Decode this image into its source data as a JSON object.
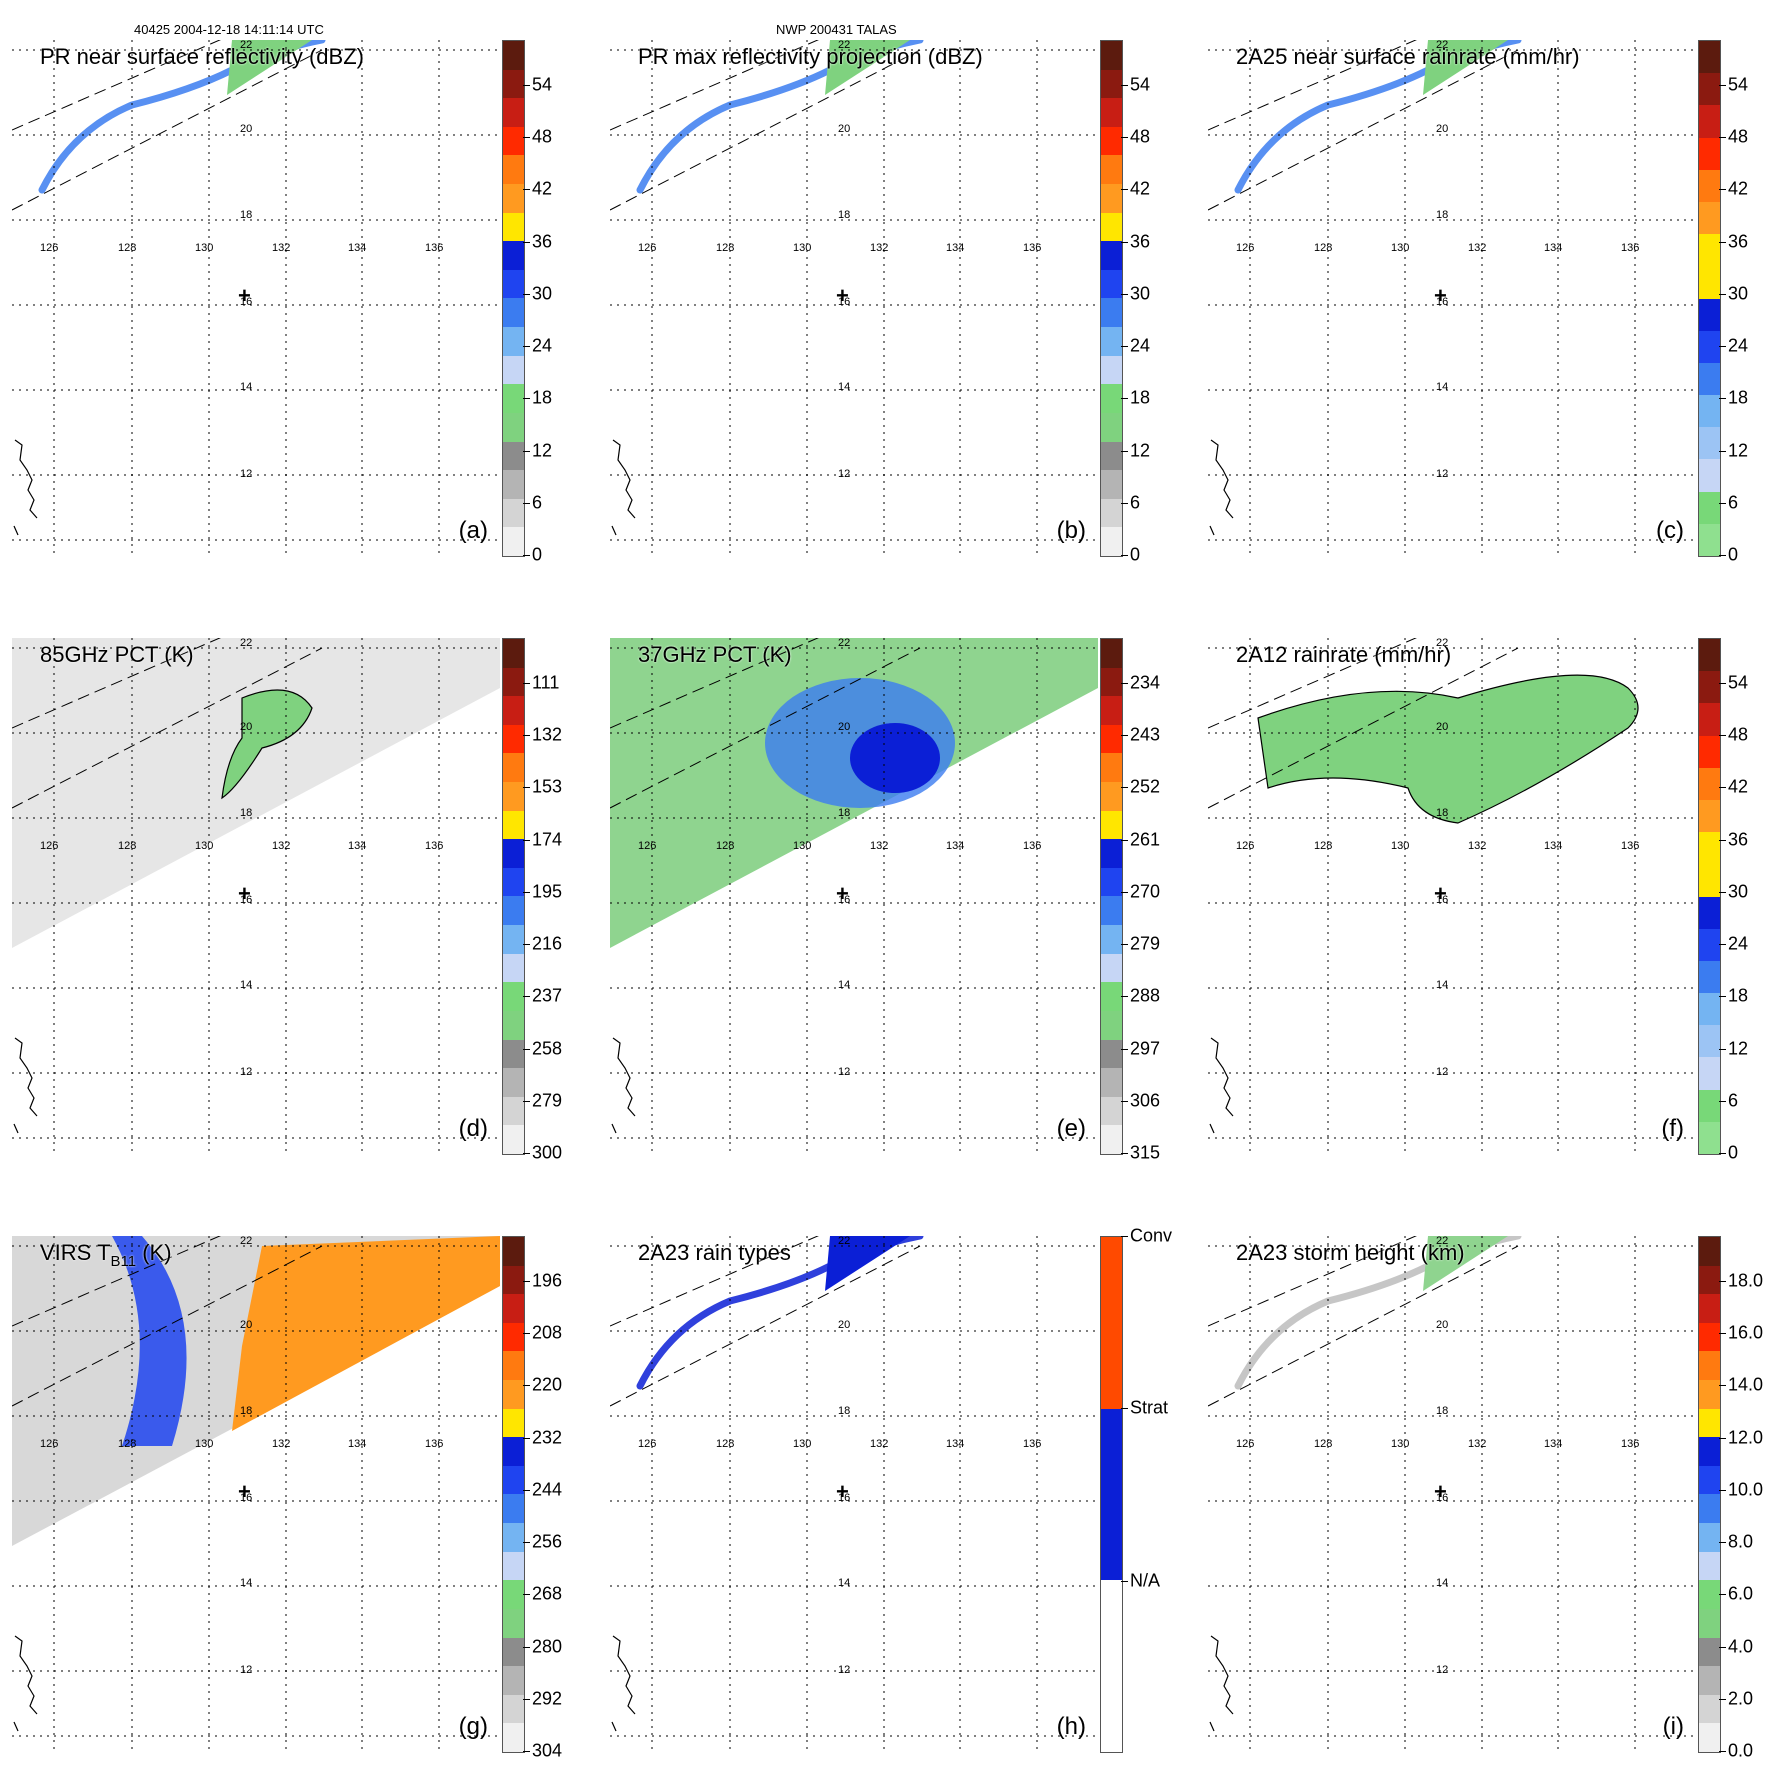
{
  "header": {
    "left": "40425 2004-12-18 14:11:14 UTC",
    "right": "NWP 200431 TALAS"
  },
  "longitudes": [
    "126",
    "128",
    "130",
    "132",
    "134",
    "136"
  ],
  "latitudes": [
    "22",
    "20",
    "18",
    "16",
    "14",
    "12"
  ],
  "center_marker": "+",
  "panels": [
    {
      "id": "a",
      "title": "PR near surface reflectivity (dBZ)",
      "label": "(a)",
      "ticks": [
        "54",
        "48",
        "42",
        "36",
        "30",
        "24",
        "18",
        "12",
        "6",
        "0"
      ],
      "colors": [
        "#5c1b0e",
        "#8b1a10",
        "#c81e14",
        "#ff2a00",
        "#ff7a10",
        "#ff9a20",
        "#ffe600",
        "#0b1fd6",
        "#1f44f0",
        "#3b7cf0",
        "#74b4f2",
        "#c6d6f5",
        "#78d878",
        "#7fd27f",
        "#8c8c8c",
        "#b4b4b4",
        "#d4d4d4",
        "#f0f0f0"
      ]
    },
    {
      "id": "b",
      "title": "PR max reflectivity projection (dBZ)",
      "label": "(b)",
      "ticks": [
        "54",
        "48",
        "42",
        "36",
        "30",
        "24",
        "18",
        "12",
        "6",
        "0"
      ],
      "colors": [
        "#5c1b0e",
        "#8b1a10",
        "#c81e14",
        "#ff2a00",
        "#ff7a10",
        "#ff9a20",
        "#ffe600",
        "#0b1fd6",
        "#1f44f0",
        "#3b7cf0",
        "#74b4f2",
        "#c6d6f5",
        "#78d878",
        "#7fd27f",
        "#8c8c8c",
        "#b4b4b4",
        "#d4d4d4",
        "#f0f0f0"
      ]
    },
    {
      "id": "c",
      "title": "2A25 near surface rainrate (mm/hr)",
      "label": "(c)",
      "ticks": [
        "54",
        "48",
        "42",
        "36",
        "30",
        "24",
        "18",
        "12",
        "6",
        "0"
      ],
      "colors": [
        "#5c1b0e",
        "#8b1a10",
        "#c81e14",
        "#ff2a00",
        "#ff7a10",
        "#ff9a20",
        "#ffe600",
        "#ffe600",
        "#0b1fd6",
        "#1f44f0",
        "#3b7cf0",
        "#74b4f2",
        "#9cc4f4",
        "#c6d6f5",
        "#78d878",
        "#8fe08f"
      ]
    },
    {
      "id": "d",
      "title": "85GHz PCT (K)",
      "label": "(d)",
      "ticks": [
        "111",
        "132",
        "153",
        "174",
        "195",
        "216",
        "237",
        "258",
        "279",
        "300"
      ],
      "colors": [
        "#5c1b0e",
        "#8b1a10",
        "#c81e14",
        "#ff2a00",
        "#ff7a10",
        "#ff9a20",
        "#ffe600",
        "#0b1fd6",
        "#1f44f0",
        "#3b7cf0",
        "#74b4f2",
        "#c6d6f5",
        "#78d878",
        "#7fd27f",
        "#8c8c8c",
        "#b4b4b4",
        "#d4d4d4",
        "#f0f0f0"
      ]
    },
    {
      "id": "e",
      "title": "37GHz PCT (K)",
      "label": "(e)",
      "ticks": [
        "234",
        "243",
        "252",
        "261",
        "270",
        "279",
        "288",
        "297",
        "306",
        "315"
      ],
      "colors": [
        "#5c1b0e",
        "#8b1a10",
        "#c81e14",
        "#ff2a00",
        "#ff7a10",
        "#ff9a20",
        "#ffe600",
        "#0b1fd6",
        "#1f44f0",
        "#3b7cf0",
        "#74b4f2",
        "#c6d6f5",
        "#78d878",
        "#7fd27f",
        "#8c8c8c",
        "#b4b4b4",
        "#d4d4d4",
        "#f0f0f0"
      ]
    },
    {
      "id": "f",
      "title": "2A12 rainrate (mm/hr)",
      "label": "(f)",
      "ticks": [
        "54",
        "48",
        "42",
        "36",
        "30",
        "24",
        "18",
        "12",
        "6",
        "0"
      ],
      "colors": [
        "#5c1b0e",
        "#8b1a10",
        "#c81e14",
        "#ff2a00",
        "#ff7a10",
        "#ff9a20",
        "#ffe600",
        "#ffe600",
        "#0b1fd6",
        "#1f44f0",
        "#3b7cf0",
        "#74b4f2",
        "#9cc4f4",
        "#c6d6f5",
        "#78d878",
        "#8fe08f"
      ]
    },
    {
      "id": "g",
      "title_main": "VIRS T",
      "title_sub": "B11",
      "title_end": " (K)",
      "label": "(g)",
      "ticks": [
        "196",
        "208",
        "220",
        "232",
        "244",
        "256",
        "268",
        "280",
        "292",
        "304"
      ],
      "colors": [
        "#5c1b0e",
        "#8b1a10",
        "#c81e14",
        "#ff2a00",
        "#ff7a10",
        "#ff9a20",
        "#ffe600",
        "#0b1fd6",
        "#1f44f0",
        "#3b7cf0",
        "#74b4f2",
        "#c6d6f5",
        "#78d878",
        "#7fd27f",
        "#8c8c8c",
        "#b4b4b4",
        "#d4d4d4",
        "#f0f0f0"
      ]
    },
    {
      "id": "h",
      "title": "2A23 rain types",
      "label": "(h)",
      "ticks": [
        "Conv",
        "Strat",
        "N/A"
      ],
      "colors": [
        "#ff4a00",
        "#0b1fd6",
        "#ffffff"
      ]
    },
    {
      "id": "i",
      "title": "2A23 storm height (km)",
      "label": "(i)",
      "ticks": [
        "18.0",
        "16.0",
        "14.0",
        "12.0",
        "10.0",
        "8.0",
        "6.0",
        "4.0",
        "2.0",
        "0.0"
      ],
      "colors": [
        "#5c1b0e",
        "#8b1a10",
        "#c81e14",
        "#ff2a00",
        "#ff7a10",
        "#ff9a20",
        "#ffe600",
        "#0b1fd6",
        "#1f44f0",
        "#3b7cf0",
        "#74b4f2",
        "#c6d6f5",
        "#78d878",
        "#7fd27f",
        "#8c8c8c",
        "#b4b4b4",
        "#d4d4d4",
        "#f0f0f0"
      ]
    }
  ]
}
